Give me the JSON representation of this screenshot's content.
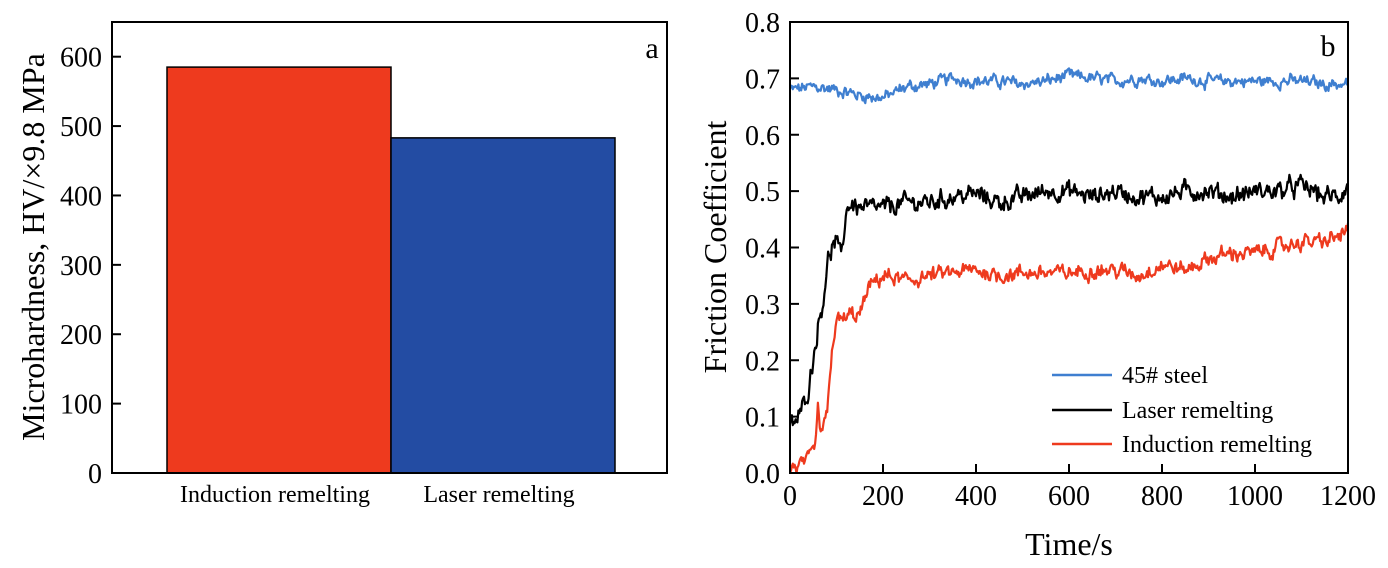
{
  "chart_data": [
    {
      "type": "bar",
      "panel_label": "a",
      "title": "",
      "xlabel": "",
      "ylabel": "Microhardness, HV/×9.8 MPa",
      "categories": [
        "Induction remelting",
        "Laser remelting"
      ],
      "values": [
        585,
        483
      ],
      "colors": [
        "#ee3a1e",
        "#234ca3"
      ],
      "ylim": [
        0,
        650
      ],
      "yticks": [
        0,
        100,
        200,
        300,
        400,
        500,
        600
      ]
    },
    {
      "type": "line",
      "panel_label": "b",
      "title": "",
      "xlabel": "Time/s",
      "ylabel": "Friction Coefficient",
      "xlim": [
        0,
        1200
      ],
      "ylim": [
        0.0,
        0.8
      ],
      "xticks": [
        0,
        200,
        400,
        600,
        800,
        1000,
        1200
      ],
      "yticks": [
        "0.0",
        "0.1",
        "0.2",
        "0.3",
        "0.4",
        "0.5",
        "0.6",
        "0.7",
        "0.8"
      ],
      "legend_position": "bottom-right",
      "series": [
        {
          "name": "45# steel",
          "color": "#3f7fd0",
          "x": [
            0,
            50,
            100,
            150,
            200,
            250,
            300,
            350,
            400,
            450,
            500,
            550,
            600,
            650,
            700,
            750,
            800,
            850,
            900,
            950,
            1000,
            1050,
            1100,
            1150,
            1200
          ],
          "y": [
            0.68,
            0.685,
            0.68,
            0.67,
            0.665,
            0.685,
            0.69,
            0.7,
            0.695,
            0.695,
            0.69,
            0.695,
            0.705,
            0.7,
            0.695,
            0.7,
            0.695,
            0.7,
            0.695,
            0.695,
            0.695,
            0.695,
            0.695,
            0.69,
            0.69
          ],
          "noise": 0.008
        },
        {
          "name": "Laser remelting",
          "color": "#000000",
          "x": [
            0,
            20,
            40,
            60,
            70,
            80,
            90,
            100,
            110,
            120,
            130,
            150,
            200,
            250,
            300,
            350,
            400,
            450,
            500,
            550,
            600,
            650,
            700,
            750,
            800,
            850,
            900,
            950,
            1000,
            1050,
            1100,
            1150,
            1180,
            1200
          ],
          "y": [
            0.08,
            0.1,
            0.15,
            0.26,
            0.3,
            0.37,
            0.4,
            0.41,
            0.38,
            0.46,
            0.48,
            0.47,
            0.47,
            0.48,
            0.48,
            0.49,
            0.495,
            0.48,
            0.49,
            0.5,
            0.5,
            0.49,
            0.5,
            0.49,
            0.49,
            0.5,
            0.5,
            0.49,
            0.5,
            0.5,
            0.51,
            0.49,
            0.49,
            0.51
          ],
          "noise": 0.012
        },
        {
          "name": "Induction remelting",
          "color": "#ee3a1e",
          "x": [
            0,
            20,
            40,
            55,
            60,
            65,
            70,
            80,
            90,
            100,
            110,
            130,
            150,
            170,
            200,
            250,
            300,
            350,
            400,
            450,
            500,
            550,
            600,
            650,
            700,
            750,
            800,
            850,
            900,
            950,
            1000,
            1050,
            1100,
            1150,
            1180,
            1200
          ],
          "y": [
            0.01,
            0.012,
            0.02,
            0.05,
            0.11,
            0.07,
            0.08,
            0.1,
            0.22,
            0.27,
            0.27,
            0.28,
            0.28,
            0.33,
            0.35,
            0.34,
            0.35,
            0.355,
            0.36,
            0.35,
            0.355,
            0.355,
            0.355,
            0.36,
            0.36,
            0.35,
            0.37,
            0.36,
            0.38,
            0.39,
            0.39,
            0.4,
            0.41,
            0.41,
            0.42,
            0.43
          ],
          "noise": 0.01
        }
      ]
    }
  ]
}
